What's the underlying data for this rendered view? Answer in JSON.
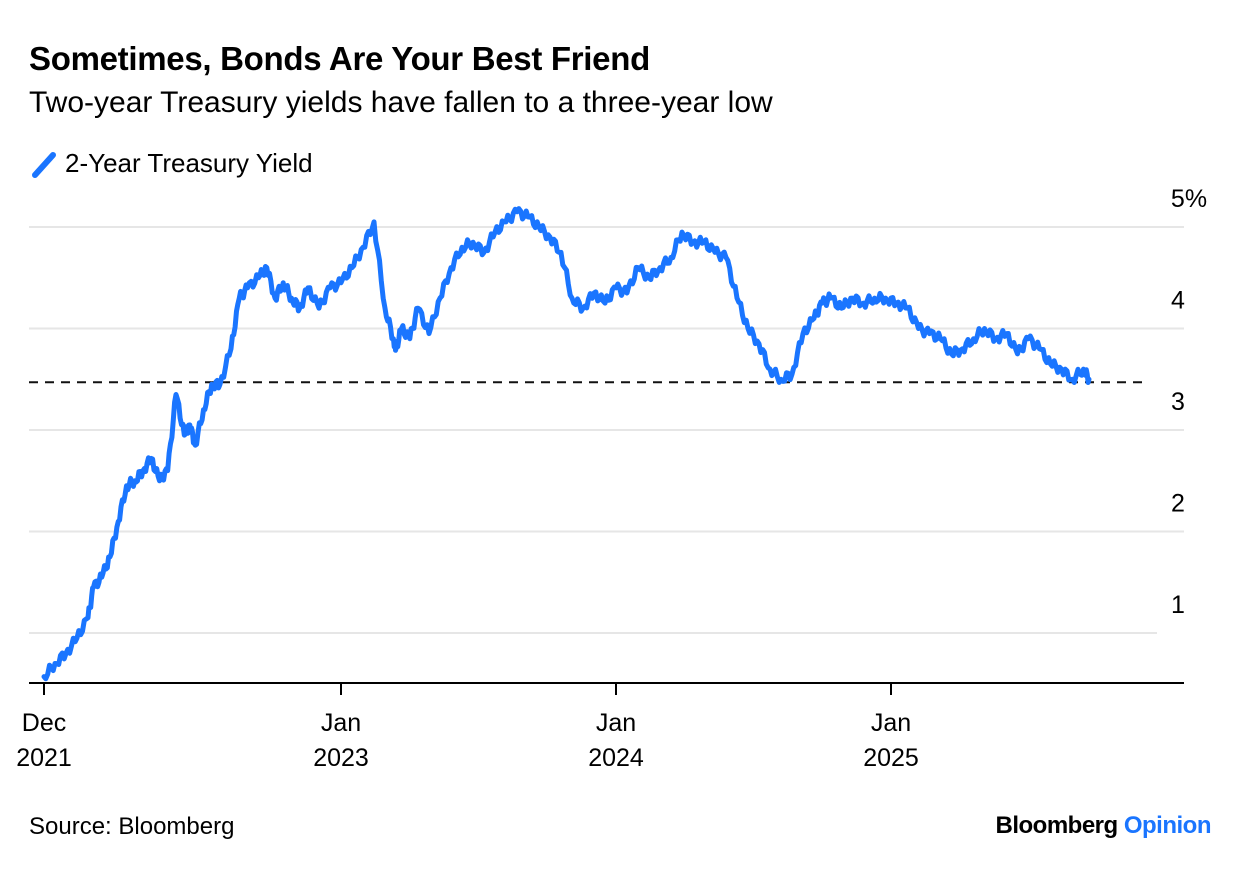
{
  "title": "Sometimes, Bonds Are Your Best Friend",
  "subtitle": "Two-year Treasury yields have fallen to a three-year low",
  "legend": {
    "label": "2-Year Treasury Yield",
    "color": "#1a75ff"
  },
  "source": "Source: Bloomberg",
  "brand": {
    "name": "Bloomberg",
    "suffix": "Opinion",
    "accent": "#1a75ff"
  },
  "chart_data": {
    "type": "line",
    "title": "Sometimes, Bonds Are Your Best Friend",
    "xlabel": "",
    "ylabel": "",
    "ylim": [
      0.5,
      5.0
    ],
    "xlim": [
      2021.85,
      2025.95
    ],
    "grid": true,
    "y_ticks": [
      {
        "value": 1,
        "label": "1"
      },
      {
        "value": 2,
        "label": "2"
      },
      {
        "value": 3,
        "label": "3"
      },
      {
        "value": 4,
        "label": "4"
      },
      {
        "value": 5,
        "label": "5%"
      }
    ],
    "x_ticks": [
      {
        "value": 2021.92,
        "line1": "Dec",
        "line2": "2021"
      },
      {
        "value": 2023.0,
        "line1": "Jan",
        "line2": "2023"
      },
      {
        "value": 2024.0,
        "line1": "Jan",
        "line2": "2024"
      },
      {
        "value": 2025.0,
        "line1": "Jan",
        "line2": "2025"
      }
    ],
    "reference_line": {
      "value": 3.47,
      "style": "dashed"
    },
    "series": [
      {
        "name": "2-Year Treasury Yield",
        "color": "#1a75ff",
        "x": [
          2021.92,
          2021.96,
          2022.0,
          2022.04,
          2022.08,
          2022.1,
          2022.13,
          2022.16,
          2022.19,
          2022.22,
          2022.25,
          2022.28,
          2022.31,
          2022.34,
          2022.37,
          2022.4,
          2022.43,
          2022.45,
          2022.47,
          2022.5,
          2022.53,
          2022.56,
          2022.6,
          2022.63,
          2022.66,
          2022.7,
          2022.73,
          2022.76,
          2022.79,
          2022.82,
          2022.85,
          2022.88,
          2022.92,
          2022.96,
          2023.0,
          2023.04,
          2023.08,
          2023.12,
          2023.16,
          2023.19,
          2023.2,
          2023.22,
          2023.25,
          2023.28,
          2023.32,
          2023.36,
          2023.4,
          2023.44,
          2023.48,
          2023.52,
          2023.56,
          2023.6,
          2023.64,
          2023.68,
          2023.72,
          2023.76,
          2023.8,
          2023.84,
          2023.88,
          2023.92,
          2023.96,
          2024.0,
          2024.04,
          2024.08,
          2024.12,
          2024.16,
          2024.2,
          2024.24,
          2024.28,
          2024.32,
          2024.36,
          2024.4,
          2024.44,
          2024.48,
          2024.52,
          2024.56,
          2024.6,
          2024.64,
          2024.68,
          2024.72,
          2024.75,
          2024.78,
          2024.82,
          2024.86,
          2024.9,
          2024.94,
          2024.98,
          2025.02,
          2025.06,
          2025.1,
          2025.14,
          2025.18,
          2025.22,
          2025.26,
          2025.3,
          2025.34,
          2025.38,
          2025.42,
          2025.46,
          2025.5,
          2025.54,
          2025.58,
          2025.62,
          2025.66,
          2025.7,
          2025.72
        ],
        "values": [
          0.57,
          0.7,
          0.8,
          0.95,
          1.15,
          1.45,
          1.55,
          1.75,
          2.1,
          2.45,
          2.5,
          2.6,
          2.72,
          2.5,
          2.6,
          3.35,
          2.95,
          3.05,
          2.85,
          3.2,
          3.45,
          3.45,
          3.8,
          4.3,
          4.4,
          4.5,
          4.6,
          4.3,
          4.45,
          4.3,
          4.2,
          4.4,
          4.2,
          4.4,
          4.45,
          4.6,
          4.8,
          5.05,
          4.2,
          3.9,
          3.8,
          4.0,
          3.9,
          4.2,
          3.95,
          4.3,
          4.6,
          4.8,
          4.85,
          4.75,
          4.95,
          5.05,
          5.15,
          5.1,
          5.0,
          4.9,
          4.75,
          4.3,
          4.2,
          4.35,
          4.25,
          4.4,
          4.35,
          4.6,
          4.5,
          4.6,
          4.7,
          4.95,
          4.85,
          4.85,
          4.75,
          4.7,
          4.3,
          4.0,
          3.85,
          3.6,
          3.5,
          3.55,
          3.95,
          4.1,
          4.25,
          4.3,
          4.2,
          4.3,
          4.25,
          4.3,
          4.3,
          4.25,
          4.2,
          4.0,
          3.95,
          3.9,
          3.75,
          3.8,
          3.9,
          4.0,
          3.9,
          3.95,
          3.75,
          3.9,
          3.8,
          3.65,
          3.6,
          3.5,
          3.6,
          3.5
        ]
      }
    ]
  }
}
